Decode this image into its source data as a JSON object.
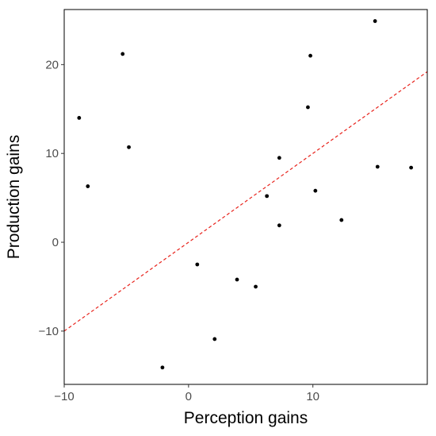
{
  "chart_data": {
    "type": "scatter",
    "title": "",
    "xlabel": "Perception gains",
    "ylabel": "Production gains",
    "xlim": [
      -10,
      19.2
    ],
    "ylim": [
      -16,
      26.2
    ],
    "xticks": [
      -10,
      0,
      10
    ],
    "yticks": [
      -10,
      0,
      10,
      20
    ],
    "xtick_labels": [
      "−10",
      "0",
      "10"
    ],
    "ytick_labels": [
      "−10",
      "0",
      "10",
      "20"
    ],
    "grid": false,
    "legend": "none",
    "point_color": "#000000",
    "points": [
      {
        "x": -8.8,
        "y": 14.0
      },
      {
        "x": -8.1,
        "y": 6.3
      },
      {
        "x": -5.3,
        "y": 21.2
      },
      {
        "x": -4.8,
        "y": 10.7
      },
      {
        "x": -2.1,
        "y": -14.1
      },
      {
        "x": 0.7,
        "y": -2.5
      },
      {
        "x": 2.1,
        "y": -10.9
      },
      {
        "x": 3.9,
        "y": -4.2
      },
      {
        "x": 5.4,
        "y": -5.0
      },
      {
        "x": 6.3,
        "y": 5.2
      },
      {
        "x": 7.3,
        "y": 9.5
      },
      {
        "x": 7.3,
        "y": 1.9
      },
      {
        "x": 9.6,
        "y": 15.2
      },
      {
        "x": 9.8,
        "y": 21.0
      },
      {
        "x": 10.2,
        "y": 5.8
      },
      {
        "x": 12.3,
        "y": 2.5
      },
      {
        "x": 15.0,
        "y": 24.9
      },
      {
        "x": 15.2,
        "y": 8.5
      },
      {
        "x": 17.9,
        "y": 8.4
      }
    ],
    "reference_line": {
      "style": "dashed",
      "color": "#e8231c",
      "slope": 1,
      "intercept": 0
    }
  }
}
